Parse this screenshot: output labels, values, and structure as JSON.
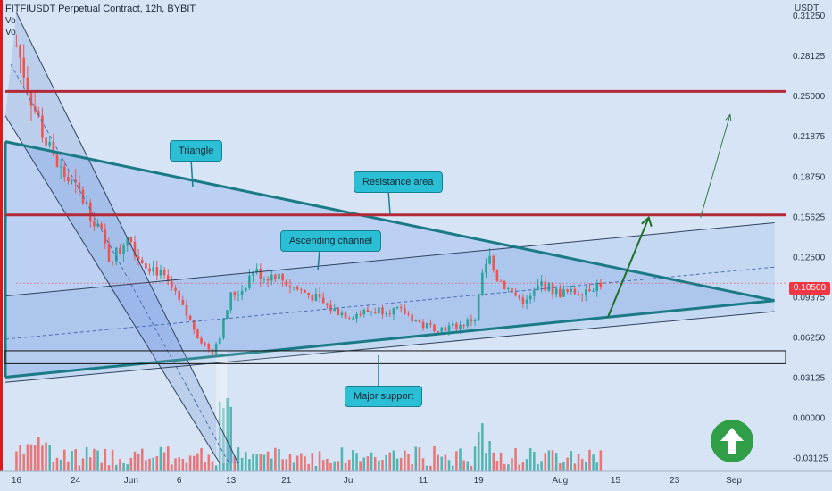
{
  "header": {
    "title": "FITFIUSDT Perpetual Contract, 12h, BYBIT",
    "vol1": "Vo",
    "vol2": "Vo"
  },
  "colors": {
    "background": "#d6e4f5",
    "bull": "#26a69a",
    "bear": "#ef5350",
    "resistance": "#b22a3a",
    "triangle": "#1a7a86",
    "channel": "#5a7bb0",
    "arrow": "#1e6f2a",
    "callout": "#2bbfd6",
    "price_tag": "#f23645"
  },
  "chart_data": {
    "type": "candlestick",
    "symbol": "FITFIUSDT Perpetual Contract",
    "interval": "12h",
    "exchange": "BYBIT",
    "y_axis_label": "USDT",
    "y_ticks": [
      0.3125,
      0.28125,
      0.25,
      0.21875,
      0.1875,
      0.15625,
      0.125,
      0.09375,
      0.0625,
      0.03125,
      0.0,
      -0.03125
    ],
    "y_tick_labels": [
      "0.31250",
      "0.28125",
      "0.25000",
      "0.21875",
      "0.18750",
      "0.15625",
      "0.12500",
      "0.09375",
      "0.06250",
      "0.03125",
      "0.00000",
      "-0.03125"
    ],
    "ylim": [
      -0.037,
      0.325
    ],
    "x_ticks": [
      "16",
      "24",
      "Jun",
      "6",
      "13",
      "21",
      "Jul",
      "11",
      "19",
      "Aug",
      "15",
      "23",
      "Sep"
    ],
    "x_tick_index": [
      0,
      16,
      31,
      44,
      58,
      73,
      90,
      110,
      125,
      147,
      162,
      178,
      194
    ],
    "x_index_range": [
      -3,
      208
    ],
    "current_price": "0.10500",
    "close_path": [
      [
        0,
        0.29
      ],
      [
        2,
        0.27
      ],
      [
        5,
        0.24
      ],
      [
        8,
        0.215
      ],
      [
        10,
        0.2
      ],
      [
        14,
        0.185
      ],
      [
        18,
        0.17
      ],
      [
        22,
        0.15
      ],
      [
        25,
        0.125
      ],
      [
        28,
        0.13
      ],
      [
        30,
        0.145
      ],
      [
        33,
        0.125
      ],
      [
        38,
        0.115
      ],
      [
        42,
        0.1
      ],
      [
        46,
        0.08
      ],
      [
        50,
        0.06
      ],
      [
        53,
        0.052
      ],
      [
        55,
        0.065
      ],
      [
        58,
        0.095
      ],
      [
        61,
        0.1
      ],
      [
        64,
        0.115
      ],
      [
        67,
        0.11
      ],
      [
        70,
        0.112
      ],
      [
        74,
        0.103
      ],
      [
        80,
        0.095
      ],
      [
        85,
        0.085
      ],
      [
        90,
        0.08
      ],
      [
        95,
        0.083
      ],
      [
        100,
        0.085
      ],
      [
        105,
        0.082
      ],
      [
        110,
        0.072
      ],
      [
        115,
        0.07
      ],
      [
        120,
        0.072
      ],
      [
        124,
        0.078
      ],
      [
        126,
        0.11
      ],
      [
        128,
        0.123
      ],
      [
        130,
        0.11
      ],
      [
        134,
        0.097
      ],
      [
        138,
        0.09
      ],
      [
        142,
        0.105
      ],
      [
        146,
        0.098
      ],
      [
        150,
        0.097
      ],
      [
        155,
        0.102
      ],
      [
        158,
        0.105
      ]
    ],
    "drawings": {
      "resistance_high": 0.254,
      "resistance_area": 0.158,
      "major_support_zone": [
        0.0425,
        0.0525
      ],
      "triangle_upper": [
        [
          -3,
          0.215
        ],
        [
          205,
          0.0915
        ]
      ],
      "triangle_lower": [
        [
          -3,
          0.032
        ],
        [
          205,
          0.0915
        ]
      ],
      "ascending_channel_upper": [
        [
          -3,
          0.095
        ],
        [
          205,
          0.152
        ]
      ],
      "ascending_channel_lower": [
        [
          -3,
          0.028
        ],
        [
          205,
          0.083
        ]
      ],
      "descending_channel_upper": [
        [
          0,
          0.315
        ],
        [
          60,
          -0.035
        ]
      ],
      "descending_channel_lower": [
        [
          -3,
          0.235
        ],
        [
          55,
          -0.035
        ]
      ],
      "projection_arrow": [
        [
          160,
          0.079
        ],
        [
          171,
          0.156
        ]
      ],
      "target_arrow": [
        [
          185,
          0.156
        ],
        [
          193,
          0.236
        ]
      ]
    },
    "annotations": [
      "Triangle",
      "Resistance area",
      "Ascending channel",
      "Major support"
    ]
  }
}
